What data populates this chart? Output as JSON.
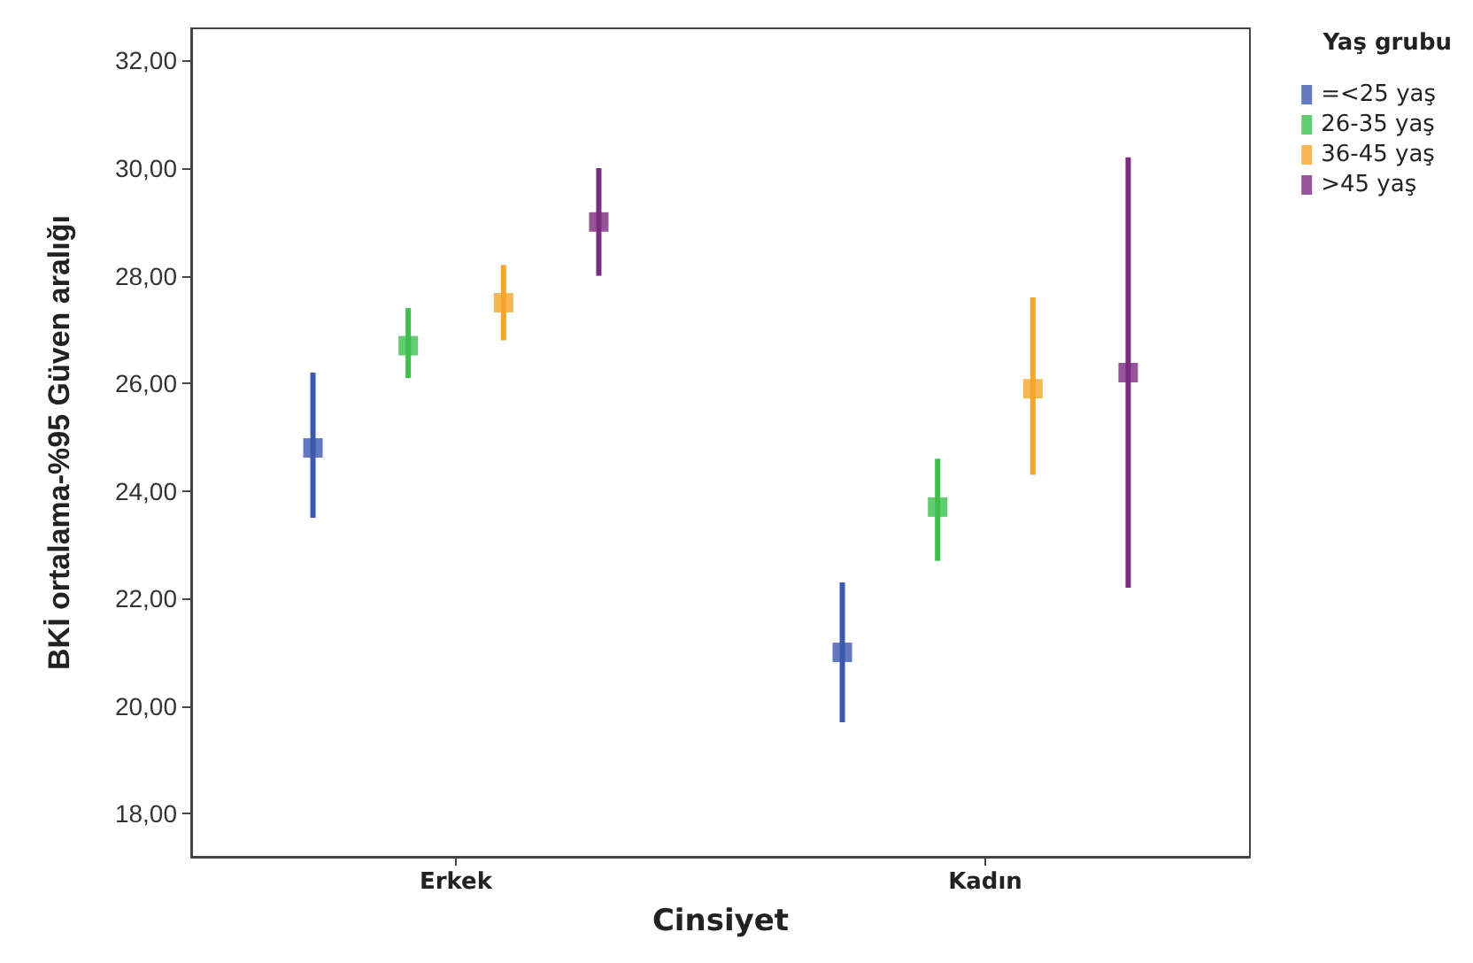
{
  "chart_data": {
    "type": "scatter",
    "xlabel": "Cinsiyet",
    "ylabel": "BKİ ortalama-%95 Güven aralığı",
    "legend_title": "Yaş grubu",
    "categories": [
      "Erkek",
      "Kadın"
    ],
    "series": [
      {
        "name": "=<25 yaş",
        "color": "#3d58b0",
        "values": [
          24.8,
          21.0
        ],
        "errors": [
          [
            23.5,
            26.2
          ],
          [
            19.7,
            22.3
          ]
        ]
      },
      {
        "name": "26-35 yaş",
        "color": "#3dbf4c",
        "values": [
          26.7,
          23.7
        ],
        "errors": [
          [
            26.1,
            27.4
          ],
          [
            22.7,
            24.6
          ]
        ]
      },
      {
        "name": "36-45 yaş",
        "color": "#f5a52a",
        "values": [
          27.5,
          25.9
        ],
        "errors": [
          [
            26.8,
            28.2
          ],
          [
            24.3,
            27.6
          ]
        ]
      },
      {
        "name": ">45 yaş",
        "color": "#7a2a80",
        "values": [
          29.0,
          26.2
        ],
        "errors": [
          [
            28.0,
            30.0
          ],
          [
            22.2,
            30.2
          ]
        ]
      }
    ],
    "ylim": [
      17.2,
      32.6
    ],
    "yticks": [
      {
        "value": 18,
        "label": "18,00"
      },
      {
        "value": 20,
        "label": "20,00"
      },
      {
        "value": 22,
        "label": "22,00"
      },
      {
        "value": 24,
        "label": "24,00"
      },
      {
        "value": 26,
        "label": "26,00"
      },
      {
        "value": 28,
        "label": "28,00"
      },
      {
        "value": 30,
        "label": "30,00"
      },
      {
        "value": 32,
        "label": "32,00"
      }
    ],
    "grid": false,
    "legend": "top right",
    "marker": "square"
  }
}
